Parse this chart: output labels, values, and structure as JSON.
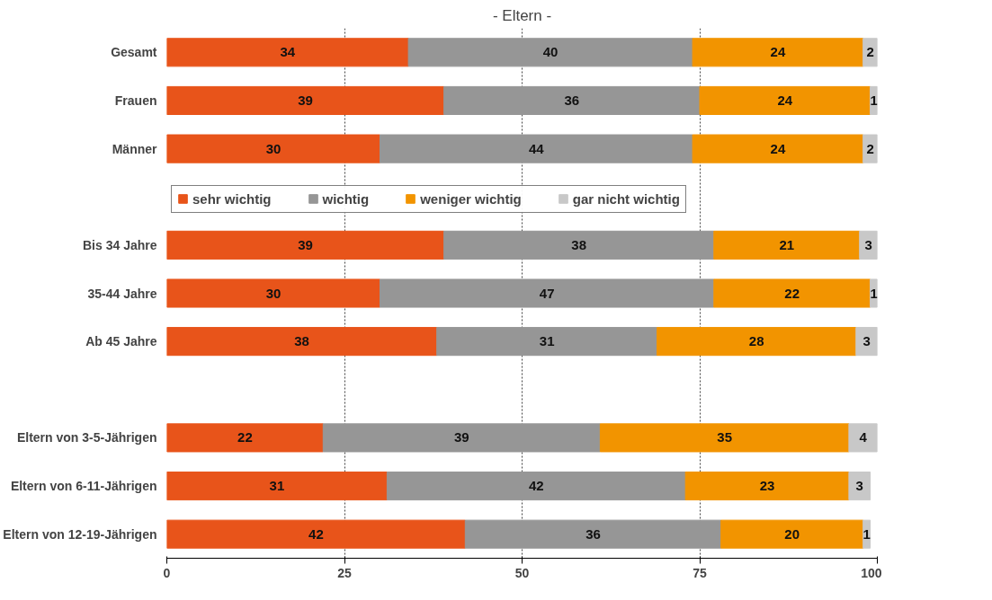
{
  "chart_data": {
    "type": "bar",
    "orientation": "horizontal",
    "stacked": true,
    "title": "- Eltern -",
    "categories": [
      "Gesamt",
      "Frauen",
      "Männer",
      null,
      "Bis 34 Jahre",
      "35-44 Jahre",
      "Ab 45 Jahre",
      null,
      "Eltern von 3-5-Jährigen",
      "Eltern von 6-11-Jährigen",
      "Eltern von 12-19-Jährigen"
    ],
    "series": [
      {
        "name": "sehr wichtig",
        "color": "#e8541a",
        "values": [
          34,
          39,
          30,
          null,
          39,
          30,
          38,
          null,
          22,
          31,
          42
        ],
        "value_labels": [
          "34",
          "39",
          "30",
          null,
          "39",
          "30",
          "38",
          null,
          "22",
          "31",
          "42"
        ]
      },
      {
        "name": "wichtig",
        "color": "#969696",
        "values": [
          40,
          36,
          44,
          null,
          38,
          47,
          31,
          null,
          39,
          42,
          36
        ],
        "value_labels": [
          "40",
          "36",
          "44",
          null,
          "38",
          "47",
          "31",
          null,
          "39",
          "42",
          "36"
        ]
      },
      {
        "name": "weniger wichtig",
        "color": "#f29400",
        "values": [
          24,
          24,
          24,
          null,
          20.5,
          22,
          28,
          null,
          35,
          23,
          20
        ],
        "value_labels": [
          "24",
          "24",
          "24",
          null,
          "21",
          "22",
          "28",
          null,
          "35",
          "23",
          "20"
        ]
      },
      {
        "name": "gar nicht wichtig",
        "color": "#c8c8c8",
        "values": [
          2,
          1,
          2,
          null,
          2.5,
          1,
          3,
          null,
          4,
          3,
          1
        ],
        "value_labels": [
          "2",
          "1",
          "2",
          null,
          "3",
          "1",
          "3",
          null,
          "4",
          "3",
          "1"
        ]
      }
    ],
    "xlim": [
      0,
      100
    ],
    "xticks": [
      0,
      25,
      50,
      75,
      100
    ],
    "grid": "x",
    "legend": "top"
  }
}
